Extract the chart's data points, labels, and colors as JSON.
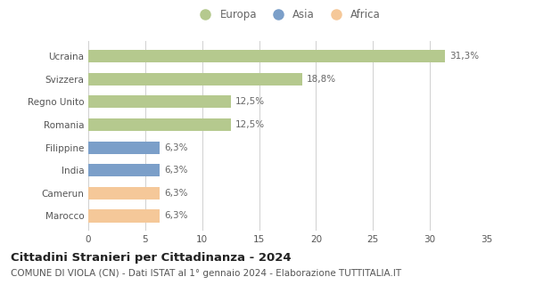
{
  "categories": [
    "Marocco",
    "Camerun",
    "India",
    "Filippine",
    "Romania",
    "Regno Unito",
    "Svizzera",
    "Ucraina"
  ],
  "values": [
    6.3,
    6.3,
    6.3,
    6.3,
    12.5,
    12.5,
    18.8,
    31.3
  ],
  "colors": [
    "#f5c899",
    "#f5c899",
    "#7b9fc9",
    "#7b9fc9",
    "#b5c98e",
    "#b5c98e",
    "#b5c98e",
    "#b5c98e"
  ],
  "labels": [
    "6,3%",
    "6,3%",
    "6,3%",
    "6,3%",
    "12,5%",
    "12,5%",
    "18,8%",
    "31,3%"
  ],
  "continent_colors": {
    "Europa": "#b5c98e",
    "Asia": "#7b9fc9",
    "Africa": "#f5c899"
  },
  "xlim": [
    0,
    35
  ],
  "xticks": [
    0,
    5,
    10,
    15,
    20,
    25,
    30,
    35
  ],
  "title": "Cittadini Stranieri per Cittadinanza - 2024",
  "subtitle": "COMUNE DI VIOLA (CN) - Dati ISTAT al 1° gennaio 2024 - Elaborazione TUTTITALIA.IT",
  "bg_color": "#ffffff",
  "grid_color": "#d0d0d0",
  "bar_height": 0.55,
  "title_fontsize": 9.5,
  "subtitle_fontsize": 7.5,
  "label_fontsize": 7.5,
  "tick_fontsize": 7.5,
  "legend_fontsize": 8.5
}
